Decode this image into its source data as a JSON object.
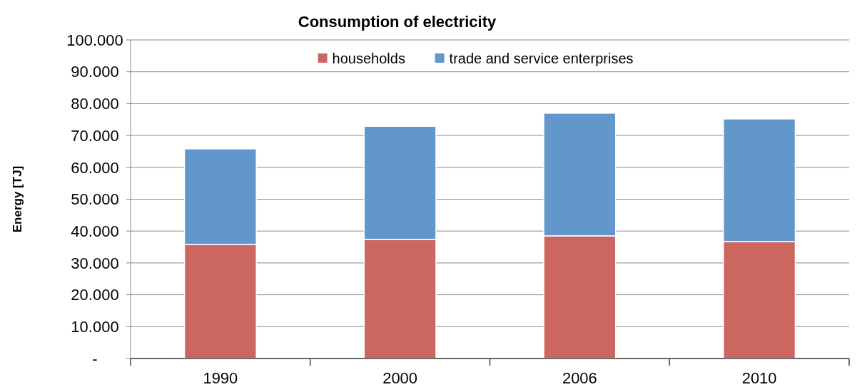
{
  "chart_data": {
    "type": "bar",
    "title": "Consumption of electricity",
    "ylabel": "Energy [TJ]",
    "categories": [
      "1990",
      "2000",
      "2006",
      "2010"
    ],
    "stacked": true,
    "series": [
      {
        "name": "households",
        "color": "#cc6660",
        "values": [
          35800,
          37400,
          38500,
          36700
        ]
      },
      {
        "name": "trade and service enterprises",
        "color": "#6197ca",
        "values": [
          30000,
          35500,
          38500,
          38500
        ]
      }
    ],
    "ylim": [
      0,
      100000
    ],
    "yticks": [
      {
        "value": 0,
        "label": "-"
      },
      {
        "value": 10000,
        "label": "10.000"
      },
      {
        "value": 20000,
        "label": "20.000"
      },
      {
        "value": 30000,
        "label": "30.000"
      },
      {
        "value": 40000,
        "label": "40.000"
      },
      {
        "value": 50000,
        "label": "50.000"
      },
      {
        "value": 60000,
        "label": "60.000"
      },
      {
        "value": 70000,
        "label": "70.000"
      },
      {
        "value": 80000,
        "label": "80.000"
      },
      {
        "value": 90000,
        "label": "90.000"
      },
      {
        "value": 100000,
        "label": "100.000"
      }
    ],
    "grid": "y",
    "legend": "top"
  }
}
